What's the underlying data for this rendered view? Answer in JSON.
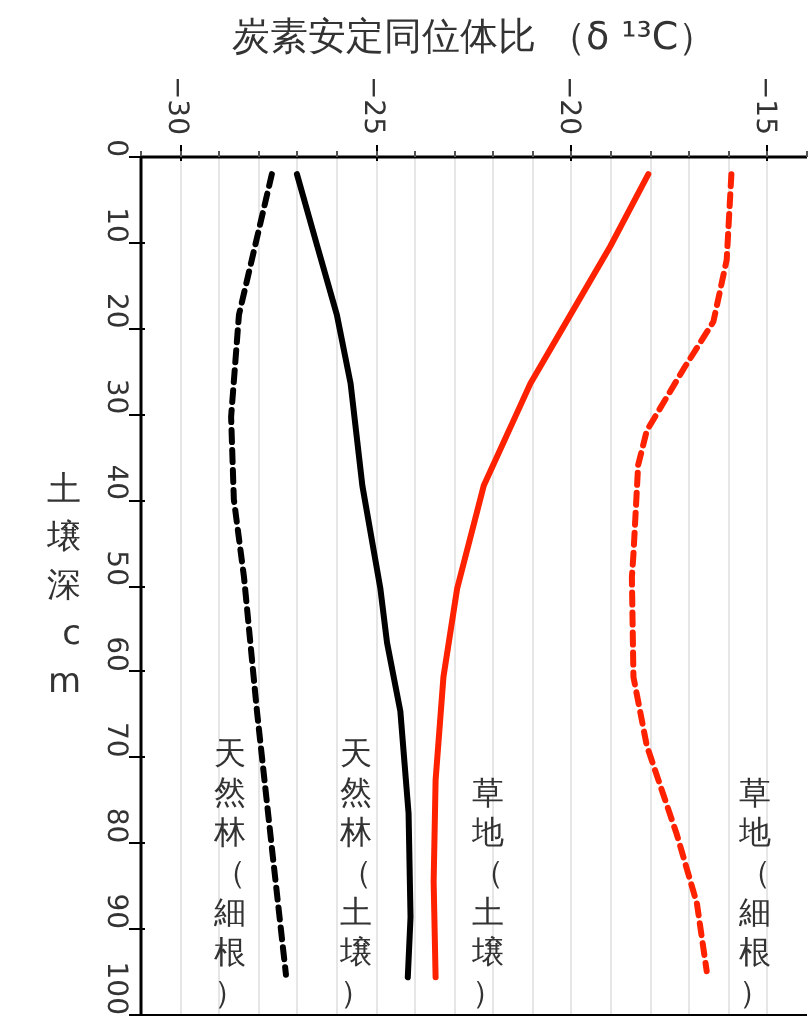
{
  "chart_data": {
    "type": "line",
    "title": "炭素安定同位体比 （δ ¹³C）",
    "ylabel": "土壌深 cm",
    "xlim": [
      -31,
      -14
    ],
    "xticks": [
      -30,
      -25,
      -20,
      -15
    ],
    "ylim": [
      100,
      0
    ],
    "yticks": [
      0,
      10,
      20,
      30,
      40,
      50,
      60,
      70,
      80,
      90,
      100
    ],
    "grid": "x",
    "series": [
      {
        "name": "天然林（細根）",
        "color": "#000000",
        "line_style": "dashed",
        "x": [
          -27.66,
          -28.5,
          -28.7,
          -28.63,
          -28.37,
          -28.04,
          -27.66,
          -27.3
        ],
        "values": [
          2,
          18.4,
          30.3,
          39.9,
          49,
          64.6,
          80.5,
          95.3
        ]
      },
      {
        "name": "天然林（土壌）",
        "color": "#000000",
        "line_style": "solid",
        "x": [
          -27.02,
          -26.5,
          -26.0,
          -25.65,
          -25.35,
          -24.89,
          -24.72,
          -24.38,
          -24.17,
          -24.12,
          -24.19
        ],
        "values": [
          2,
          10.4,
          18.4,
          26.4,
          38.3,
          50.3,
          56.6,
          64.6,
          76.5,
          88.6,
          95.6
        ]
      },
      {
        "name": "草地（土壌）",
        "color": "#ff2200",
        "line_style": "solid",
        "x": [
          -18.05,
          -19.02,
          -20.04,
          -21.06,
          -22.25,
          -22.93,
          -23.28,
          -23.48,
          -23.53,
          -23.48
        ],
        "values": [
          2,
          10.4,
          18.4,
          26.4,
          38.3,
          50.3,
          60.6,
          72.6,
          84.5,
          95.6
        ]
      },
      {
        "name": "草地（細根）",
        "color": "#ff2200",
        "line_style": "dashed",
        "x": [
          -15.93,
          -16.05,
          -16.39,
          -17.15,
          -18.09,
          -18.31,
          -18.43,
          -18.47,
          -18.43,
          -18.09,
          -17.32,
          -16.81,
          -16.56
        ],
        "values": [
          2,
          12,
          19.2,
          24.7,
          31.9,
          35.9,
          46.3,
          49,
          60.6,
          68.6,
          79,
          87,
          94.9
        ]
      }
    ]
  }
}
